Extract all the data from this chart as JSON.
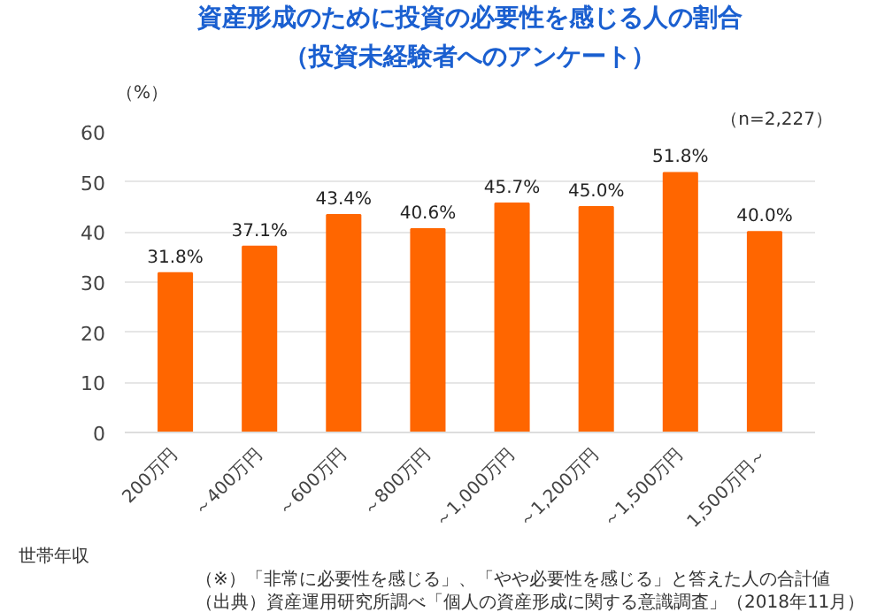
{
  "chart_data": {
    "type": "bar",
    "title": "資産形成のために投資の必要性を感じる人の割合",
    "subtitle": "（投資未経験者へのアンケート）",
    "xlabel": "世帯年収",
    "ylabel": "（%）",
    "categories": [
      "200万円",
      "～400万円",
      "～600万円",
      "～800万円",
      "～1,000万円",
      "～1,200万円",
      "～1,500万円",
      "1,500万円～"
    ],
    "values": [
      31.8,
      37.1,
      43.4,
      40.6,
      45.7,
      45.0,
      51.8,
      40.0
    ],
    "value_labels": [
      "31.8%",
      "37.1%",
      "43.4%",
      "40.6%",
      "45.7%",
      "45.0%",
      "51.8%",
      "40.0%"
    ],
    "color": "#ff6600",
    "ylim": [
      0,
      60
    ],
    "yticks": [
      0,
      10,
      20,
      30,
      40,
      50,
      60
    ],
    "grid": "y",
    "annotations": [
      "（n=2,227）",
      "（※）「非常に必要性を感じる」、「やや必要性を感じる」と答えた人の合計値",
      "（出典）資産運用研究所調べ「個人の資産形成に関する意識調査」（2018年11月）"
    ]
  }
}
